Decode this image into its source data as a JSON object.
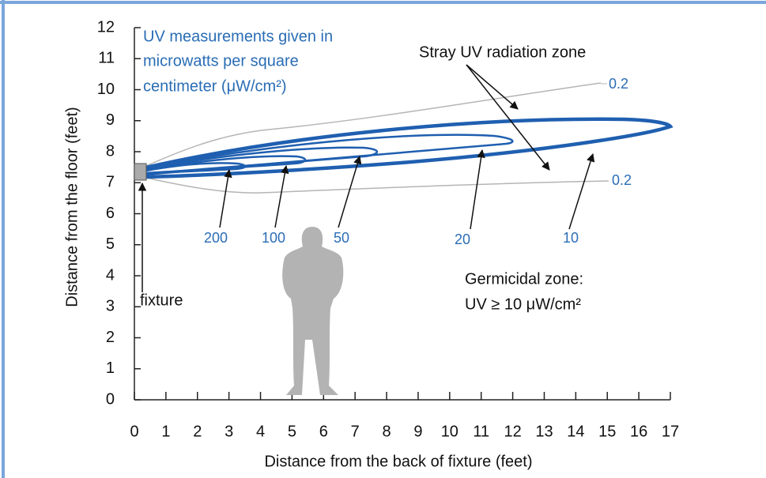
{
  "axes": {
    "x": {
      "label": "Distance from the back of fixture (feet)",
      "lim": [
        0,
        17
      ],
      "ticks": [
        0,
        1,
        2,
        3,
        4,
        5,
        6,
        7,
        8,
        9,
        10,
        11,
        12,
        13,
        14,
        15,
        16,
        17
      ]
    },
    "y": {
      "label": "Distance from the floor (feet)",
      "lim": [
        0,
        12
      ],
      "ticks": [
        0,
        1,
        2,
        3,
        4,
        5,
        6,
        7,
        8,
        9,
        10,
        11,
        12
      ]
    }
  },
  "note": [
    "UV measurements given in",
    "microwatts per square",
    "centimeter (μW/cm²)"
  ],
  "stray_label": "Stray UV radiation zone",
  "fixture_label": "fixture",
  "germicidal": [
    "Germicidal zone:",
    "UV ≥ 10 μW/cm²"
  ],
  "contour_labels": [
    "200",
    "100",
    "50",
    "20",
    "10",
    "0.2",
    "0.2"
  ]
}
